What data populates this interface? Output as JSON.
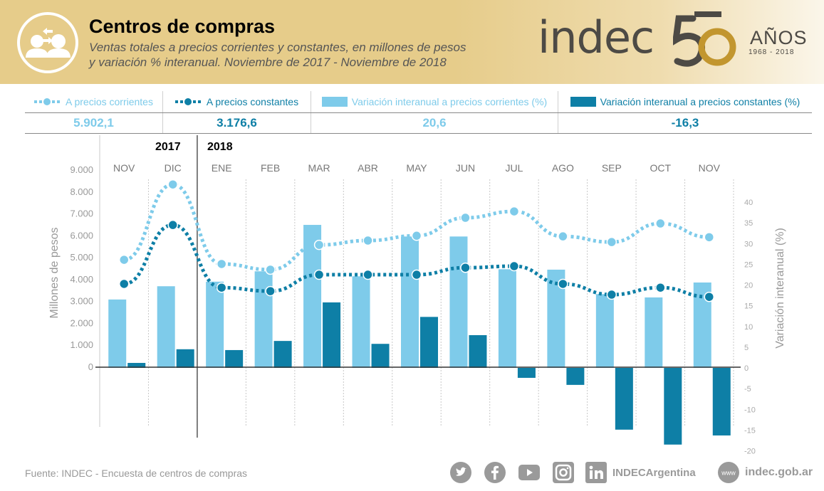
{
  "header": {
    "title": "Centros de compras",
    "subtitle_line1": "Ventas totales a precios corrientes y constantes, en millones de pesos",
    "subtitle_line2": "y variación % interanual. Noviembre de 2017 - Noviembre de 2018",
    "icon": "people-exchange-icon"
  },
  "logo": {
    "text": "indec",
    "number": "50",
    "anos": "AÑOS",
    "years": "1968  -  2018"
  },
  "legend": [
    {
      "label": "A precios corrientes",
      "type": "line",
      "color": "#7ecbea",
      "value": "5.902,1"
    },
    {
      "label": "A precios constantes",
      "type": "line",
      "color": "#0e7fa6",
      "value": "3.176,6"
    },
    {
      "label": "Variación interanual a precios corrientes (%)",
      "type": "bar",
      "color": "#7ecbea",
      "value": "20,6"
    },
    {
      "label": "Variación interanual a precios constantes (%)",
      "type": "bar",
      "color": "#0e7fa6",
      "value": "-16,3"
    }
  ],
  "years": {
    "y2017": "2017",
    "y2018": "2018"
  },
  "colors": {
    "light": "#7ecbea",
    "dark": "#0e7fa6",
    "axis": "#999999",
    "grid": "#c8c8c8"
  },
  "chart_data": {
    "type": "bar",
    "title": "Centros de compras",
    "categories": [
      "NOV",
      "DIC",
      "ENE",
      "FEB",
      "MAR",
      "ABR",
      "MAY",
      "JUN",
      "JUL",
      "AGO",
      "SEP",
      "OCT",
      "NOV"
    ],
    "year_groups": [
      {
        "year": "2017",
        "categories": [
          "NOV",
          "DIC"
        ]
      },
      {
        "year": "2018",
        "categories": [
          "ENE",
          "FEB",
          "MAR",
          "ABR",
          "MAY",
          "JUN",
          "JUL",
          "AGO",
          "SEP",
          "OCT",
          "NOV"
        ]
      }
    ],
    "ylabel": "Millones de pesos",
    "ylabel_right": "Variación interanual (%)",
    "ylim": [
      0,
      9000
    ],
    "ylim_right": [
      -20,
      40
    ],
    "yticks": [
      "9.000",
      "8.000",
      "7.000",
      "6.000",
      "5.000",
      "4.000",
      "3.000",
      "2.000",
      "1.000",
      "0"
    ],
    "yticks_values": [
      9000,
      8000,
      7000,
      6000,
      5000,
      4000,
      3000,
      2000,
      1000,
      0
    ],
    "yticks_right": [
      40,
      35,
      30,
      25,
      20,
      15,
      10,
      5,
      0,
      -5,
      -10,
      -15,
      -20
    ],
    "series": [
      {
        "name": "A precios corrientes",
        "kind": "line",
        "axis": "left",
        "color": "#7ecbea",
        "values": [
          4870,
          8310,
          4680,
          4420,
          5550,
          5750,
          5970,
          6790,
          7080,
          5940,
          5680,
          6530,
          5902.1
        ]
      },
      {
        "name": "A precios constantes",
        "kind": "line",
        "axis": "left",
        "color": "#0e7fa6",
        "values": [
          3770,
          6460,
          3600,
          3440,
          4190,
          4190,
          4190,
          4510,
          4580,
          3770,
          3280,
          3600,
          3176.6
        ]
      },
      {
        "name": "Variación interanual a precios corrientes (%)",
        "kind": "bar",
        "axis": "right",
        "color": "#7ecbea",
        "values": [
          16.5,
          19.7,
          20.8,
          23.3,
          34.5,
          22.1,
          31.7,
          31.7,
          23.8,
          23.7,
          17.8,
          17.0,
          20.6
        ]
      },
      {
        "name": "Variación interanual a precios constantes (%)",
        "kind": "bar",
        "axis": "right",
        "color": "#0e7fa6",
        "values": [
          1.2,
          4.5,
          4.3,
          6.5,
          15.8,
          5.8,
          12.3,
          7.9,
          -2.4,
          -4.1,
          -14.9,
          -18.5,
          -16.3
        ]
      }
    ],
    "grid": "vertical-dotted",
    "legend_position": "top"
  },
  "footer": {
    "source": "Fuente:  INDEC - Encuesta de centros de compras",
    "social_handle": "INDECArgentina",
    "website": "indec.gob.ar",
    "www": "www",
    "social_icons": [
      "twitter-icon",
      "facebook-icon",
      "youtube-icon",
      "instagram-icon",
      "linkedin-icon"
    ]
  }
}
